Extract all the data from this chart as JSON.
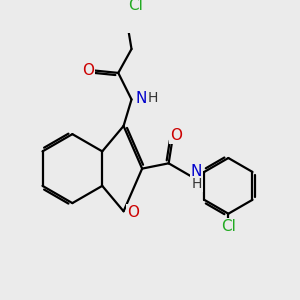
{
  "bg_color": "#ebebeb",
  "bond_color": "#000000",
  "bond_width": 1.6,
  "atom_colors": {
    "Cl": "#22aa22",
    "O": "#cc0000",
    "N": "#0000cc",
    "H": "#444444"
  },
  "font_size_atom": 11,
  "font_size_h": 10
}
